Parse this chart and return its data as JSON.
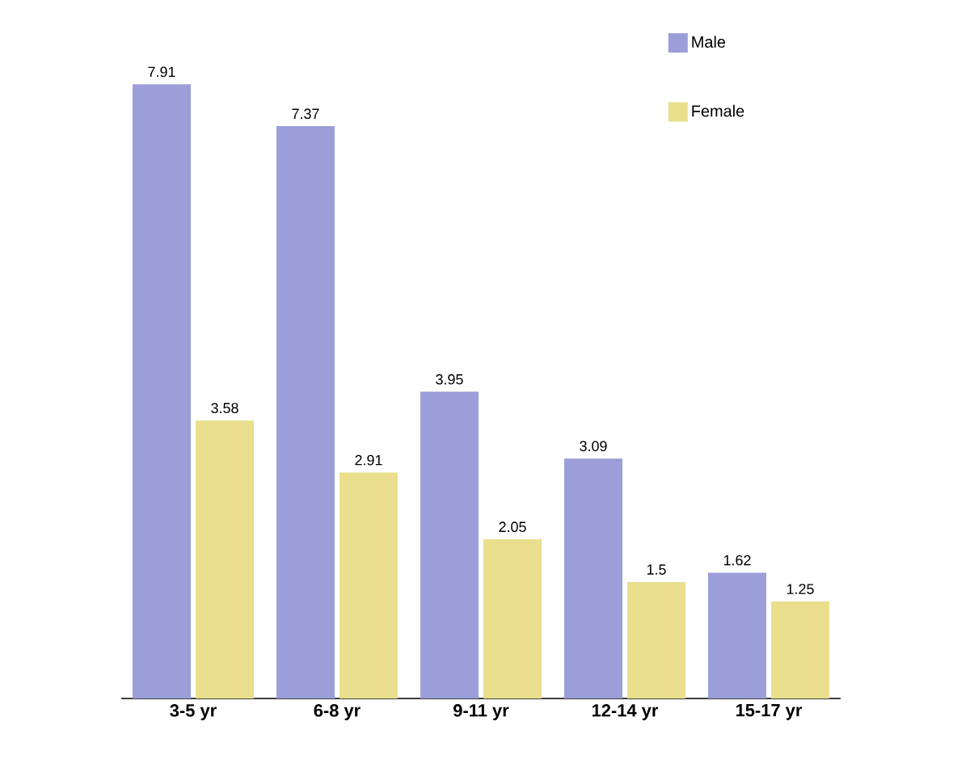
{
  "chart_data": {
    "type": "bar",
    "categories": [
      "3-5 yr",
      "6-8 yr",
      "9-11 yr",
      "12-14 yr",
      "15-17 yr"
    ],
    "series": [
      {
        "name": "Male",
        "color": "#9b9ed8",
        "values": [
          7.91,
          7.37,
          3.95,
          3.09,
          1.62
        ]
      },
      {
        "name": "Female",
        "color": "#e9df8c",
        "values": [
          3.58,
          2.91,
          2.05,
          1.5,
          1.25
        ]
      }
    ],
    "data_labels": true,
    "legend": "top right"
  }
}
